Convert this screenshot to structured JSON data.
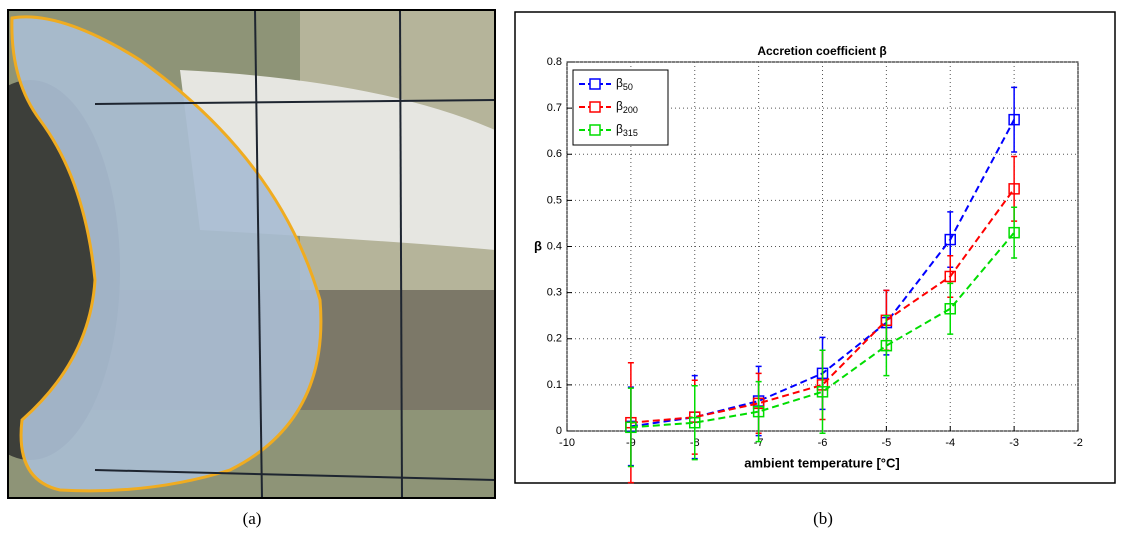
{
  "captions": [
    "(a)",
    "(b)"
  ],
  "chart_data": {
    "type": "line",
    "title": "Accretion coefficient β",
    "xlabel": "ambient temperature [°C]",
    "ylabel": "β",
    "x": [
      -9,
      -8,
      -7,
      -6,
      -5,
      -4,
      -3
    ],
    "series": [
      {
        "name": "β50",
        "color": "#0000ff",
        "values": [
          0.01,
          0.03,
          0.065,
          0.125,
          0.235,
          0.415,
          0.675
        ],
        "errors": [
          0.085,
          0.09,
          0.075,
          0.078,
          0.07,
          0.06,
          0.07
        ]
      },
      {
        "name": "β200",
        "color": "#ff0000",
        "values": [
          0.018,
          0.03,
          0.06,
          0.1,
          0.24,
          0.335,
          0.525
        ],
        "errors": [
          0.13,
          0.08,
          0.065,
          0.075,
          0.065,
          0.045,
          0.07
        ]
      },
      {
        "name": "β315",
        "color": "#00dd00",
        "values": [
          0.008,
          0.018,
          0.042,
          0.085,
          0.185,
          0.265,
          0.43
        ],
        "errors": [
          0.085,
          0.08,
          0.065,
          0.09,
          0.065,
          0.055,
          0.055
        ]
      }
    ],
    "xlim": [
      -10,
      -2
    ],
    "xticks": [
      -10,
      -9,
      -8,
      -7,
      -6,
      -5,
      -4,
      -3,
      -2
    ],
    "ylim": [
      0,
      0.8
    ],
    "yticks": [
      0,
      0.1,
      0.2,
      0.3,
      0.4,
      0.5,
      0.6,
      0.7,
      0.8
    ],
    "grid": true,
    "legend": "upper left"
  }
}
